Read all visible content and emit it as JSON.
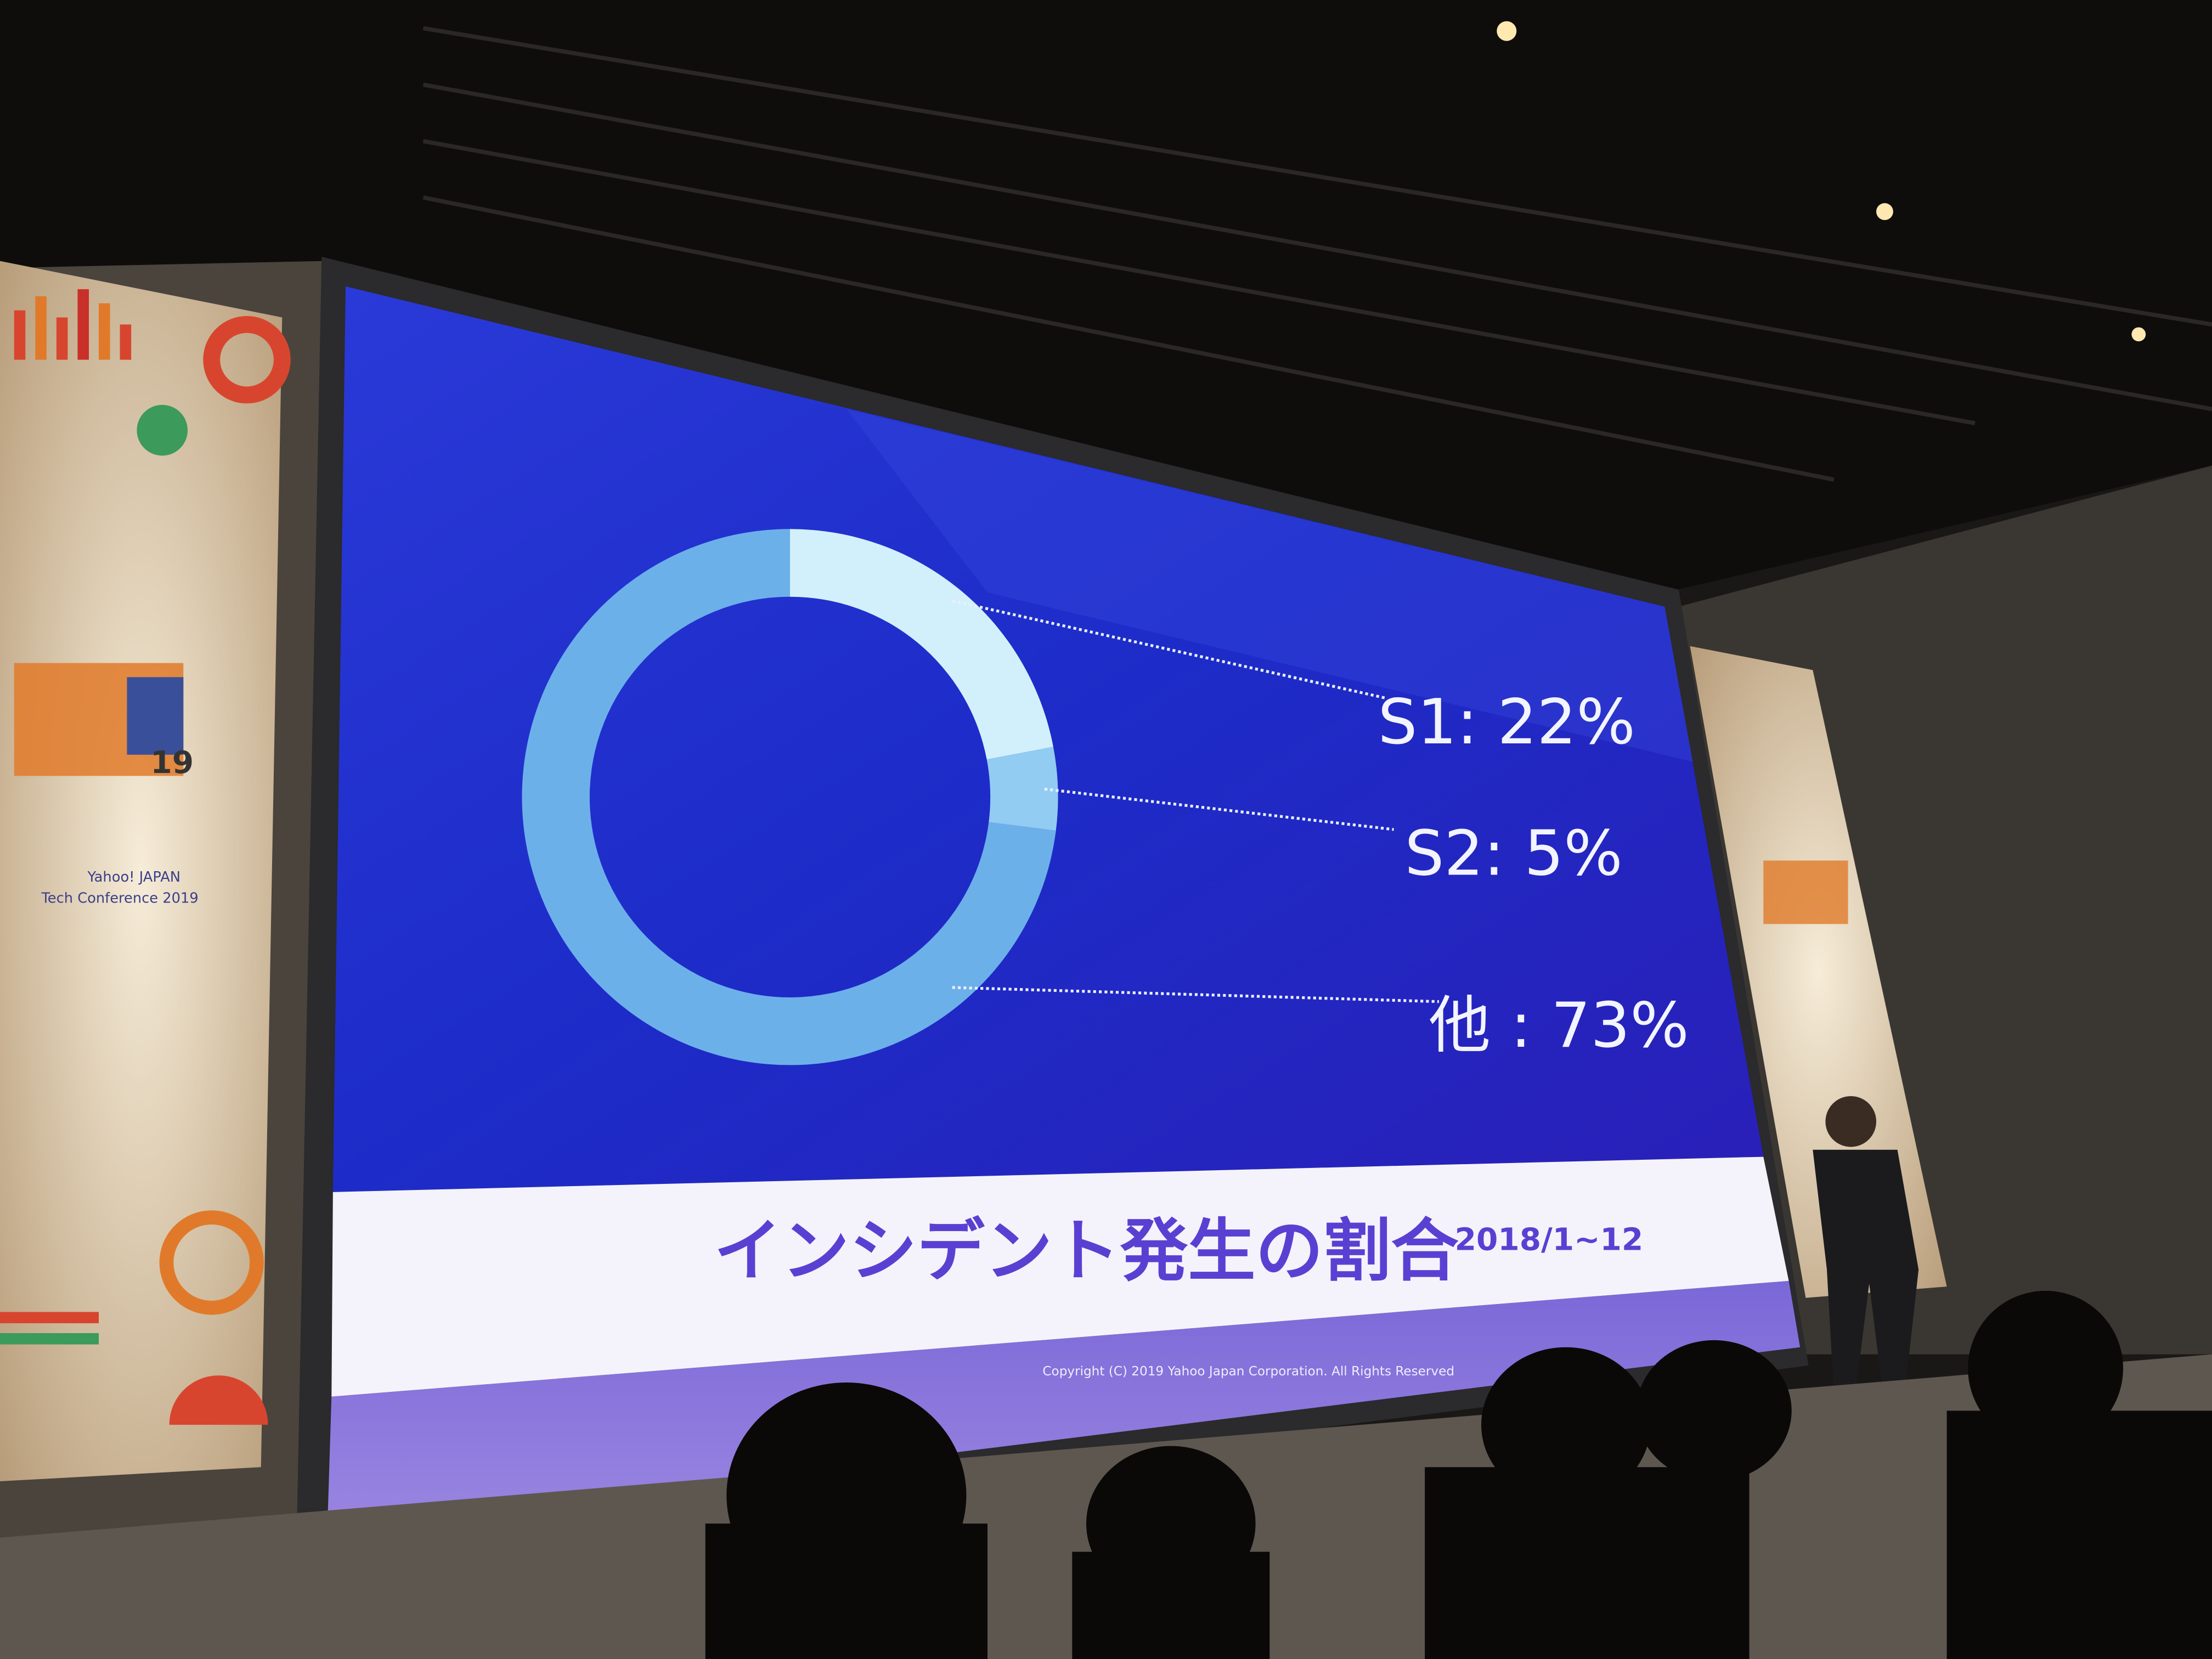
{
  "chart_data": {
    "type": "pie",
    "donut": true,
    "title": "インシデント発生の割合",
    "subtitle": "2018/1~12",
    "values": [
      22,
      5,
      73
    ],
    "value_labels": [
      "S1: 22%",
      "S2: 5%",
      "他 : 73%"
    ],
    "colors": [
      "#d2f0fb",
      "#92ccf2",
      "#6cb0ea"
    ],
    "footer": "Copyright (C) 2019 Yahoo Japan Corporation. All Rights Reserved"
  },
  "scene": {
    "banner_brand": "Yahoo! JAPAN",
    "banner_event": "Tech Conference 2019",
    "banner_year": "19"
  }
}
